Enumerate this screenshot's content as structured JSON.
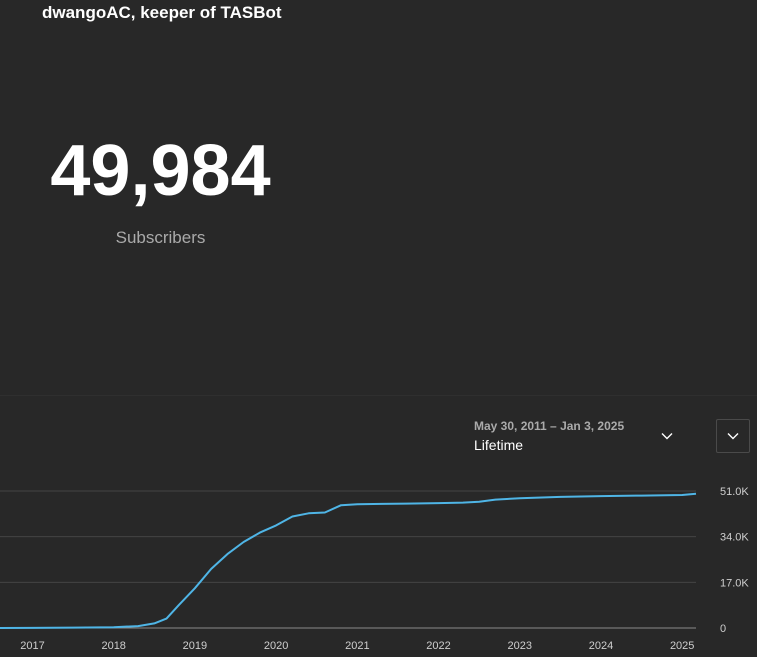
{
  "header": {
    "channel_title": "dwangoAC, keeper of TASBot"
  },
  "stats": {
    "subscriber_count": "49,984",
    "subscriber_label": "Subscribers"
  },
  "date_picker": {
    "range": "May 30, 2011 – Jan 3, 2025",
    "preset": "Lifetime",
    "icon": "chevron-down-icon"
  },
  "expand_button": {
    "icon": "chevron-down-icon"
  },
  "colors": {
    "background": "#282828",
    "line": "#4fb5e6",
    "grid": "#444444"
  },
  "chart_data": {
    "type": "line",
    "title": "",
    "xlabel": "",
    "ylabel": "",
    "x_ticks": [
      "2017",
      "2018",
      "2019",
      "2020",
      "2021",
      "2022",
      "2023",
      "2024",
      "2025"
    ],
    "y_ticks": [
      {
        "value": 0,
        "label": "0"
      },
      {
        "value": 17000,
        "label": "17.0K"
      },
      {
        "value": 34000,
        "label": "34.0K"
      },
      {
        "value": 51000,
        "label": "51.0K"
      }
    ],
    "ylim": [
      0,
      51000
    ],
    "xlim": [
      2016.6,
      2025.17
    ],
    "grid": true,
    "series": [
      {
        "name": "",
        "color": "#4fb5e6",
        "x": [
          2016.6,
          2017.0,
          2017.5,
          2018.0,
          2018.3,
          2018.5,
          2018.65,
          2018.8,
          2019.0,
          2019.2,
          2019.4,
          2019.6,
          2019.8,
          2020.0,
          2020.2,
          2020.4,
          2020.6,
          2020.8,
          2021.0,
          2021.3,
          2021.6,
          2022.0,
          2022.3,
          2022.5,
          2022.7,
          2023.0,
          2023.5,
          2024.0,
          2024.5,
          2025.0,
          2025.17
        ],
        "y": [
          0,
          50,
          150,
          300,
          700,
          1700,
          3500,
          8500,
          14800,
          22000,
          27500,
          32000,
          35500,
          38200,
          41500,
          42700,
          43000,
          45700,
          46100,
          46200,
          46300,
          46500,
          46700,
          47000,
          47800,
          48300,
          48800,
          49100,
          49300,
          49500,
          49984
        ]
      }
    ]
  }
}
